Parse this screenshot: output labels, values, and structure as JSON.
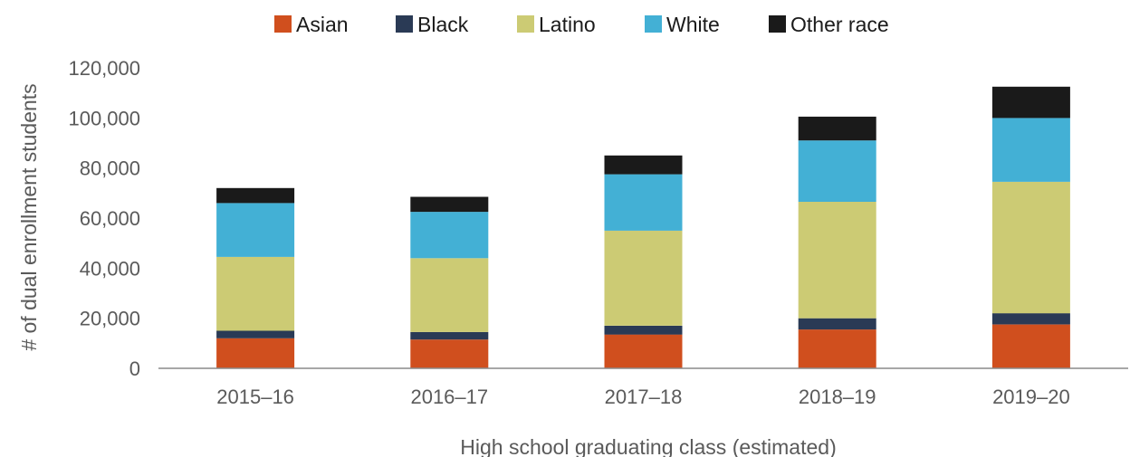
{
  "chart_data": {
    "type": "bar",
    "stacked": true,
    "categories": [
      "2015–16",
      "2016–17",
      "2017–18",
      "2018–19",
      "2019–20"
    ],
    "series": [
      {
        "name": "Asian",
        "color": "#d04f1e",
        "values": [
          12000,
          11500,
          13500,
          15500,
          17500
        ]
      },
      {
        "name": "Black",
        "color": "#2a3a55",
        "values": [
          3000,
          3000,
          3500,
          4500,
          4500
        ]
      },
      {
        "name": "Latino",
        "color": "#cccb74",
        "values": [
          29500,
          29500,
          38000,
          46500,
          52500
        ]
      },
      {
        "name": "White",
        "color": "#43b0d5",
        "values": [
          21500,
          18500,
          22500,
          24500,
          25500
        ]
      },
      {
        "name": "Other race",
        "color": "#1a1a1a",
        "values": [
          6000,
          6000,
          7500,
          9500,
          12500
        ]
      }
    ],
    "xlabel": "High school graduating class (estimated)",
    "ylabel": "# of dual enrollment students",
    "ylim": [
      0,
      120000
    ],
    "yticks": [
      0,
      20000,
      40000,
      60000,
      80000,
      100000,
      120000
    ],
    "ytick_labels": [
      "0",
      "20,000",
      "40,000",
      "60,000",
      "80,000",
      "100,000",
      "120,000"
    ],
    "grid": false,
    "legend_position": "top"
  }
}
